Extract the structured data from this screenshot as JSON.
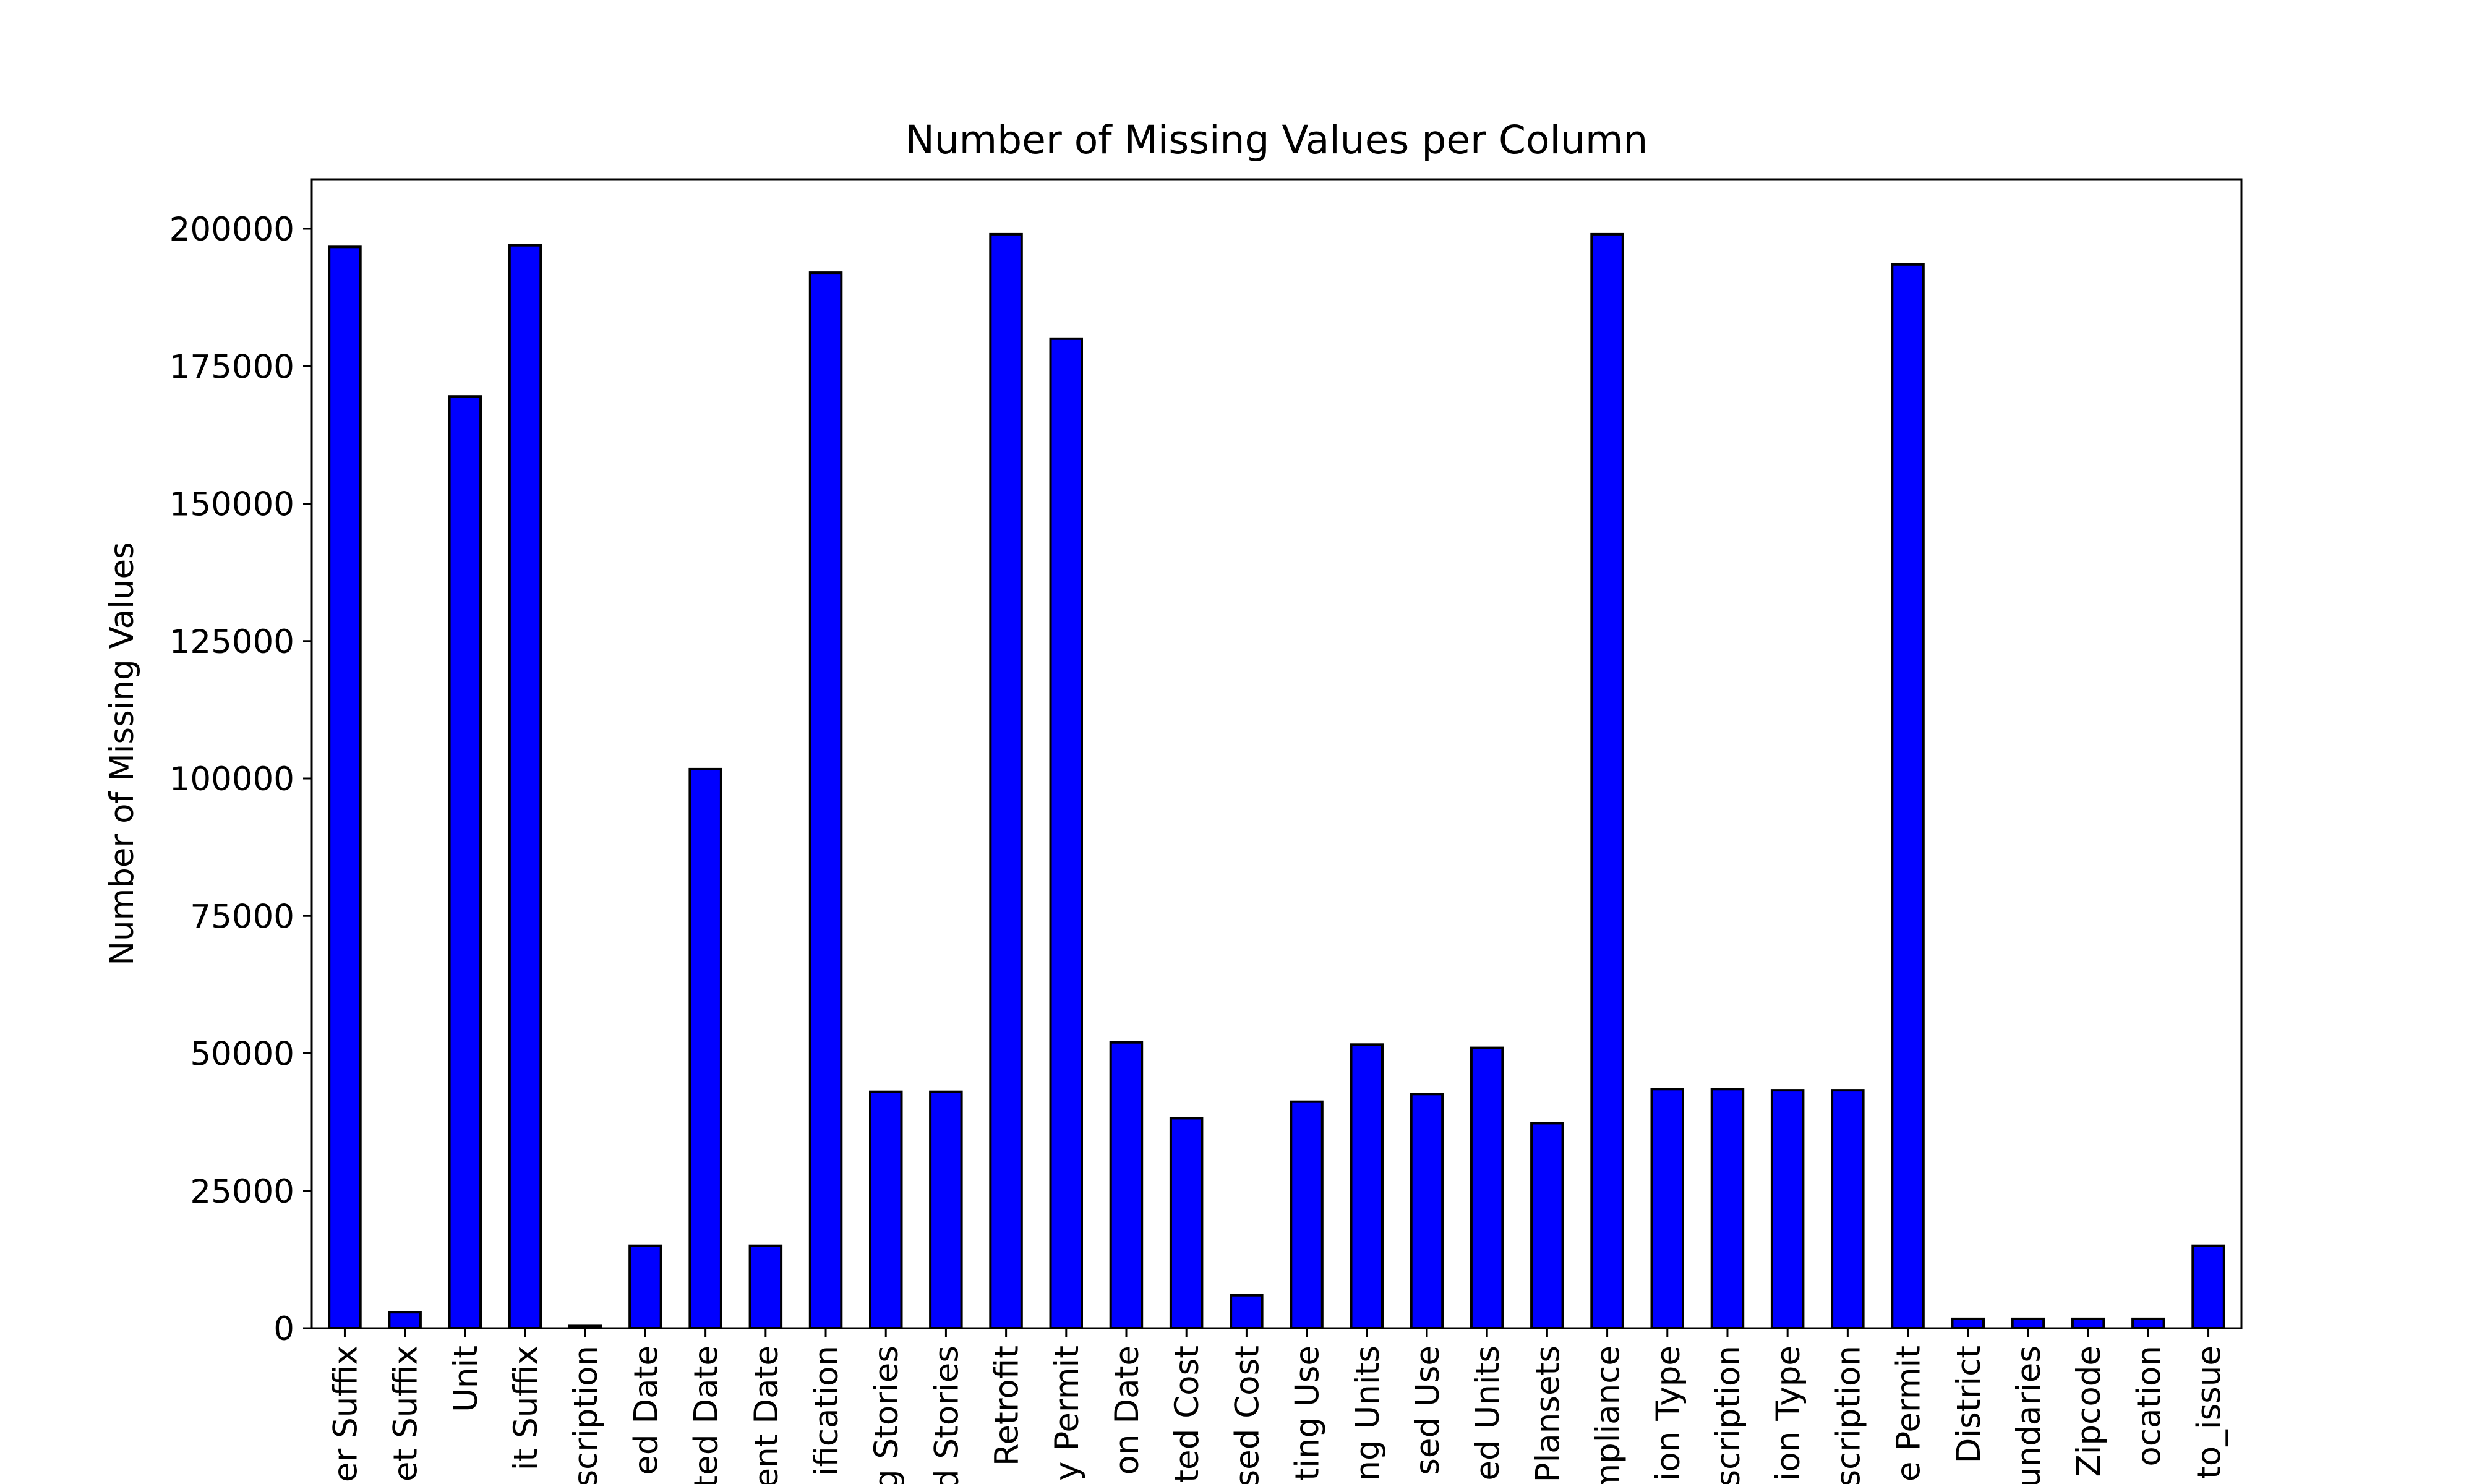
{
  "chart_data": {
    "type": "bar",
    "title": "Number of Missing Values per Column",
    "xlabel": "",
    "ylabel": "Number of Missing Values",
    "ylim": [
      0,
      209000
    ],
    "yticks": [
      0,
      25000,
      50000,
      75000,
      100000,
      125000,
      150000,
      175000,
      200000
    ],
    "grid": false,
    "legend": "none",
    "colors": {
      "bar": "#0000ff",
      "edge": "#000000"
    },
    "categories": [
      "er Suffix",
      "et Suffix",
      "Unit",
      "it Suffix",
      "scription",
      "ed Date",
      "ted Date",
      "ent Date",
      "ification",
      "g Stories",
      "d Stories",
      "Retrofit",
      "y Permit",
      "on Date",
      "ted Cost",
      "sed Cost",
      "ting Use",
      "ng Units",
      "sed Use",
      "ed Units",
      "Plansets",
      "mpliance",
      "ion Type",
      "scription",
      "ion Type",
      "scription",
      "e Permit",
      "District",
      "undaries",
      "Zipcode",
      "ocation",
      "to_issue"
    ],
    "values": [
      196700,
      2900,
      169500,
      197000,
      400,
      15000,
      101700,
      15000,
      192000,
      43000,
      43000,
      199000,
      180000,
      52000,
      38200,
      6000,
      41200,
      51600,
      42600,
      51000,
      37300,
      199000,
      43500,
      43500,
      43300,
      43300,
      193500,
      1700,
      1700,
      1700,
      1700,
      15000
    ]
  }
}
